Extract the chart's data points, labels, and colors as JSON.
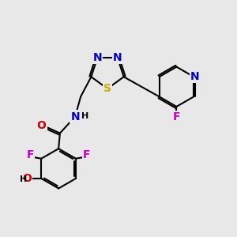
{
  "background_color": "#e8e8e8",
  "atom_colors": {
    "C": "#000000",
    "N": "#0000cc",
    "O": "#cc0000",
    "S": "#ccaa00",
    "F": "#cc00cc",
    "H": "#000000"
  },
  "bond_color": "#000000",
  "bond_width": 1.5,
  "font_size": 10
}
